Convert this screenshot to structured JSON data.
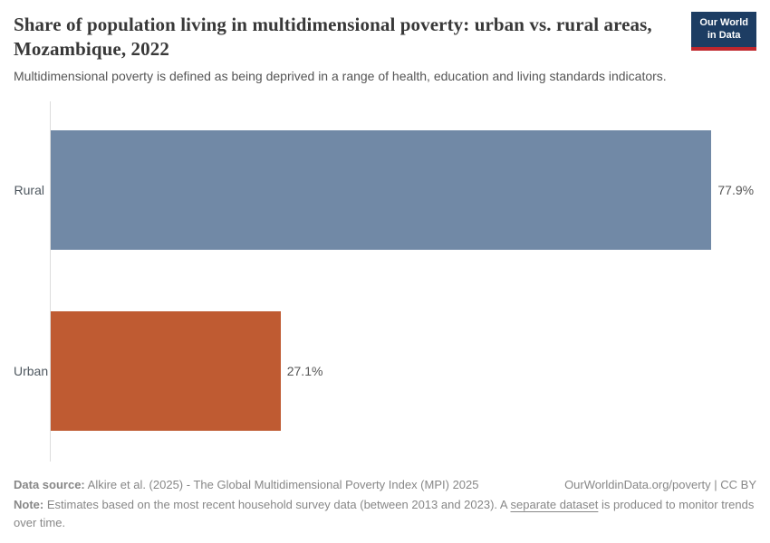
{
  "header": {
    "title": "Share of population living in multidimensional poverty: urban vs. rural areas, Mozambique, 2022",
    "subtitle": "Multidimensional poverty is defined as being deprived in a range of health, education and living standards indicators.",
    "logo": {
      "line1": "Our World",
      "line2": "in Data",
      "bg_color": "#1d3d63",
      "accent_color": "#c0272d"
    }
  },
  "chart_data": {
    "type": "bar",
    "orientation": "horizontal",
    "title": "Share of population living in multidimensional poverty: urban vs. rural areas, Mozambique, 2022",
    "categories": [
      "Rural",
      "Urban"
    ],
    "values": [
      77.9,
      27.1
    ],
    "value_labels": [
      "77.9%",
      "27.1%"
    ],
    "bar_colors": [
      "#7189a6",
      "#bf5b32"
    ],
    "xlabel": "",
    "ylabel": "",
    "xlim": [
      0,
      83.2
    ],
    "grid": false,
    "legend": "none",
    "axis_line_color": "#dcdcdc"
  },
  "footer": {
    "datasource_prefix": "Data source:",
    "datasource_text": " Alkire et al. (2025) - The Global Multidimensional Poverty Index (MPI) 2025",
    "attribution": "OurWorldinData.org/poverty | CC BY",
    "note_prefix": "Note:",
    "note_text_1": " Estimates based on the most recent household survey data (between 2013 and 2023). A ",
    "note_link": "separate dataset",
    "note_text_2": " is produced to monitor trends over time."
  }
}
